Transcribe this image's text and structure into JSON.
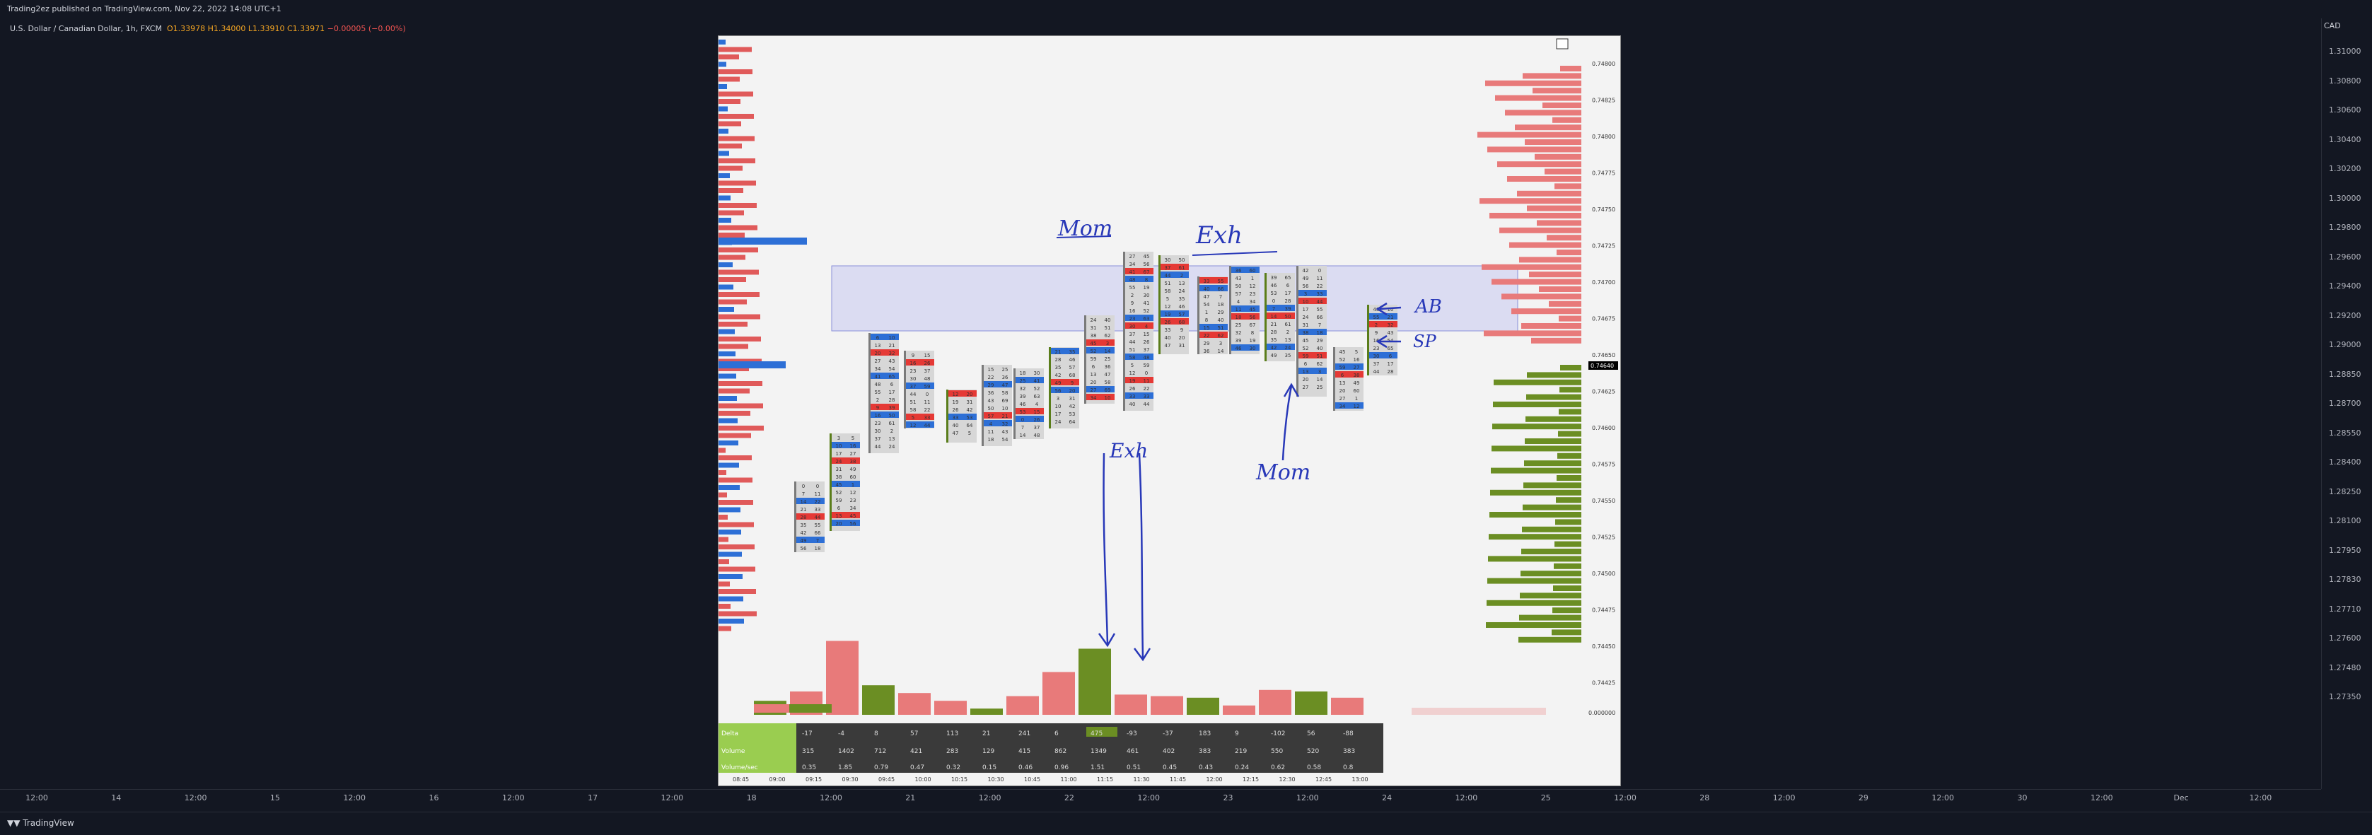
{
  "header": {
    "publish_line": "Trading2ez published on TradingView.com, Nov 22, 2022 14:08 UTC+1"
  },
  "legend": {
    "symbol": "U.S. Dollar / Canadian Dollar, 1h, FXCM",
    "open": "O1.33978",
    "high": "H1.34000",
    "low": "L1.33910",
    "close": "C1.33971",
    "change": "−0.00005 (−0.00%)"
  },
  "price_axis": {
    "currency": "CAD",
    "ticks": [
      "1.31000",
      "1.30800",
      "1.30600",
      "1.30400",
      "1.30200",
      "1.30000",
      "1.29800",
      "1.29600",
      "1.29400",
      "1.29200",
      "1.29000",
      "1.28850",
      "1.28700",
      "1.28550",
      "1.28400",
      "1.28250",
      "1.28100",
      "1.27950",
      "1.27830",
      "1.27710",
      "1.27600",
      "1.27480",
      "1.27350"
    ]
  },
  "time_axis": {
    "ticks": [
      "12:00",
      "14",
      "12:00",
      "15",
      "12:00",
      "16",
      "12:00",
      "17",
      "12:00",
      "18",
      "12:00",
      "21",
      "12:00",
      "22",
      "12:00",
      "23",
      "12:00",
      "24",
      "12:00",
      "25",
      "12:00",
      "28",
      "12:00",
      "29",
      "12:00",
      "30",
      "12:00",
      "Dec",
      "12:00"
    ]
  },
  "footer": {
    "brand": "TradingView"
  },
  "annotations": {
    "mom_top": "Mom",
    "exh_top": "Exh",
    "exh_mid": "Exh",
    "mom_bottom": "Mom",
    "ab": "AB",
    "sp": "SP"
  },
  "inner_chart": {
    "price_labels": [
      "0.74800",
      "0.74825",
      "0.74800",
      "0.74775",
      "0.74750",
      "0.74725",
      "0.74700",
      "0.74675",
      "0.74650",
      "0.74625",
      "0.74600",
      "0.74575",
      "0.74550",
      "0.74525",
      "0.74500",
      "0.74475",
      "0.74450",
      "0.74425"
    ],
    "current_price_label": "0.74640",
    "indicator_zero_label": "0.000000",
    "rows": {
      "delta": {
        "label": "Delta",
        "values": [
          "-17",
          "-4",
          "8",
          "57",
          "113",
          "21",
          "241",
          "6",
          "475",
          "-93",
          "-37",
          "183",
          "9",
          "-102",
          "56",
          "-88"
        ]
      },
      "volume": {
        "label": "Volume",
        "values": [
          "315",
          "1402",
          "712",
          "421",
          "283",
          "129",
          "415",
          "862",
          "1349",
          "461",
          "402",
          "383",
          "219",
          "550",
          "520",
          "383"
        ]
      },
      "vol_per_sec": {
        "label": "Volume/sec",
        "values": [
          "0.35",
          "1.85",
          "0.79",
          "0.47",
          "0.32",
          "0.15",
          "0.46",
          "0.96",
          "1.51",
          "0.51",
          "0.45",
          "0.43",
          "0.24",
          "0.62",
          "0.58",
          "0.8"
        ]
      }
    },
    "time_labels": [
      "08:45",
      "09:00",
      "09:15",
      "09:30",
      "09:45",
      "10:00",
      "10:15",
      "10:30",
      "10:45",
      "11:00",
      "11:15",
      "11:30",
      "11:45",
      "12:00",
      "12:15",
      "12:30",
      "12:45",
      "13:00"
    ],
    "volume_bars": [
      18,
      30,
      95,
      38,
      28,
      18,
      8,
      24,
      55,
      85,
      26,
      24,
      22,
      12,
      32,
      30,
      22
    ]
  }
}
